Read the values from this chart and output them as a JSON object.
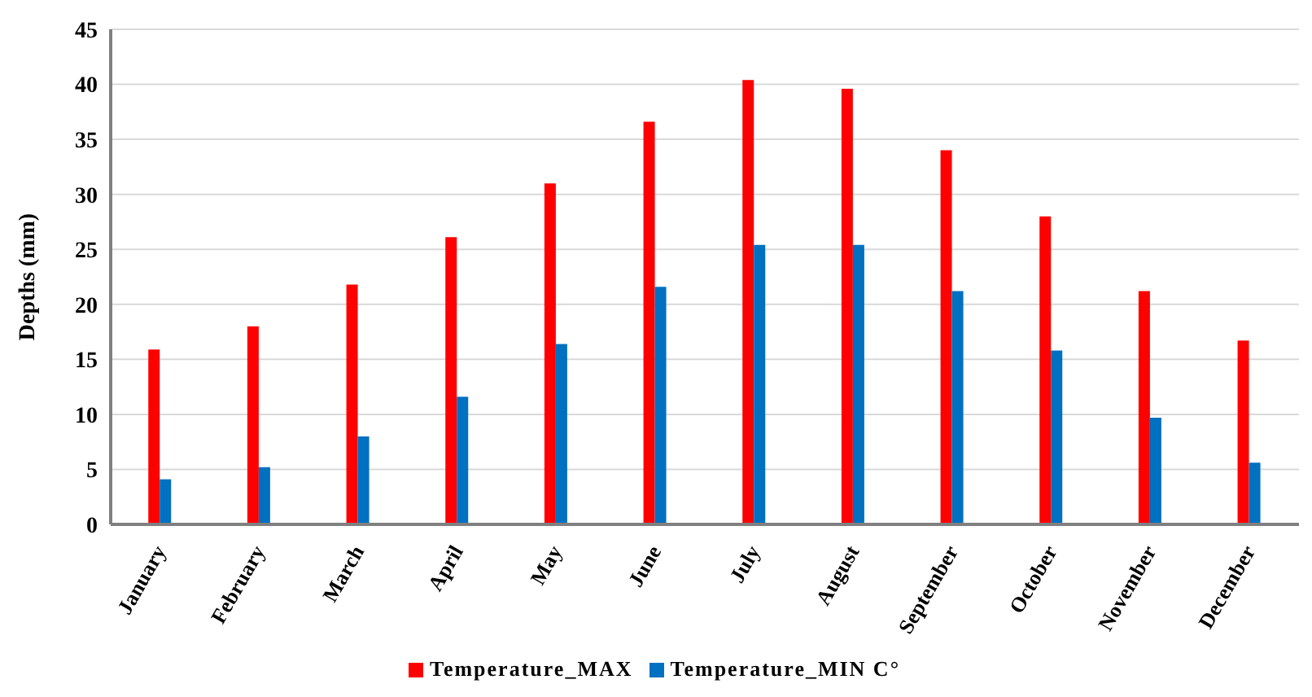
{
  "chart_data": {
    "type": "bar",
    "ylabel": "Depths (mm)",
    "categories": [
      "January",
      "February",
      "March",
      "April",
      "May",
      "June",
      "July",
      "August",
      "September",
      "October",
      "November",
      "December"
    ],
    "series": [
      {
        "name": "Temperature_MAX",
        "color": "#ff0000",
        "values": [
          15.9,
          18,
          21.8,
          26.1,
          31,
          36.6,
          40.4,
          39.6,
          34,
          28,
          21.2,
          16.7
        ]
      },
      {
        "name": "Temperature_MIN C°",
        "color": "#0070c0",
        "values": [
          4.1,
          5.2,
          8,
          11.6,
          16.4,
          21.6,
          25.4,
          25.4,
          21.2,
          15.8,
          9.7,
          5.6
        ]
      }
    ],
    "ylim": [
      0,
      45
    ],
    "yticks": [
      0,
      5,
      10,
      15,
      20,
      25,
      30,
      35,
      40,
      45
    ],
    "grid": "y",
    "legend": "bottom"
  }
}
